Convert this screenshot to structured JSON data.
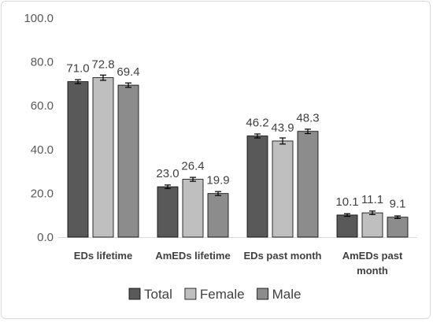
{
  "chart_data": {
    "type": "bar",
    "categories": [
      "EDs lifetime",
      "AmEDs lifetime",
      "EDs past month",
      "AmEDs past month"
    ],
    "category_lines": [
      [
        "EDs lifetime"
      ],
      [
        "AmEDs lifetime"
      ],
      [
        "EDs past month"
      ],
      [
        "AmEDs past",
        "month"
      ]
    ],
    "series": [
      {
        "name": "Total",
        "values": [
          71.0,
          23.0,
          46.2,
          10.1
        ],
        "errors": [
          0.9,
          0.8,
          0.9,
          0.6
        ],
        "color": "#595959"
      },
      {
        "name": "Female",
        "values": [
          72.8,
          26.4,
          43.9,
          11.1
        ],
        "errors": [
          1.2,
          0.9,
          1.4,
          0.8
        ],
        "color": "#bfbfbf"
      },
      {
        "name": "Male",
        "values": [
          69.4,
          19.9,
          48.3,
          9.1
        ],
        "errors": [
          1.0,
          0.9,
          1.0,
          0.6
        ],
        "color": "#8c8c8c"
      }
    ],
    "data_labels": [
      [
        "71.0",
        "23.0",
        "46.2",
        "10.1"
      ],
      [
        "72.8",
        "26.4",
        "43.9",
        "11.1"
      ],
      [
        "69.4",
        "19.9",
        "48.3",
        "9.1"
      ]
    ],
    "title": "",
    "xlabel": "",
    "ylabel": "",
    "ylim": [
      0,
      100
    ],
    "yticks": [
      "0.0",
      "20.0",
      "40.0",
      "60.0",
      "80.0",
      "100.0"
    ],
    "grid": false,
    "legend_position": "bottom",
    "bar_outline_color": "#000000",
    "axis_color": "#d9d9d9"
  }
}
